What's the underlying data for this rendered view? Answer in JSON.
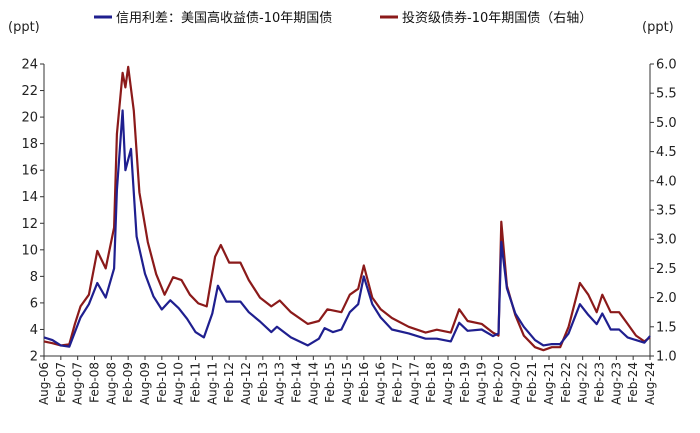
{
  "chart_data": {
    "type": "line",
    "title": "",
    "units": {
      "left": "(ppt)",
      "right": "(ppt)"
    },
    "legend": {
      "placement": "top",
      "entries": [
        "信用利差：美国高收益债-10年期国债",
        "投资级债券-10年期国债（右轴）"
      ]
    },
    "grid": false,
    "x_categories": [
      "Aug-06",
      "Feb-07",
      "Aug-07",
      "Feb-08",
      "Aug-08",
      "Feb-09",
      "Aug-09",
      "Feb-10",
      "Aug-10",
      "Feb-11",
      "Aug-11",
      "Feb-12",
      "Aug-12",
      "Feb-13",
      "Aug-13",
      "Feb-14",
      "Aug-14",
      "Feb-15",
      "Aug-15",
      "Feb-16",
      "Aug-16",
      "Feb-17",
      "Aug-17",
      "Feb-18",
      "Aug-18",
      "Feb-19",
      "Aug-19",
      "Feb-20",
      "Aug-20",
      "Feb-21",
      "Aug-21",
      "Feb-22",
      "Aug-22",
      "Feb-23",
      "Aug-23",
      "Feb-24",
      "Aug-24"
    ],
    "y_left": {
      "ylim": [
        2,
        24
      ],
      "ticks": [
        2,
        4,
        6,
        8,
        10,
        12,
        14,
        16,
        18,
        20,
        22,
        24
      ]
    },
    "y_right": {
      "ylim": [
        1.0,
        6.0
      ],
      "ticks": [
        "1.0",
        "1.5",
        "2.0",
        "2.5",
        "3.0",
        "3.5",
        "4.0",
        "4.5",
        "5.0",
        "5.5",
        "6.0"
      ]
    },
    "series": [
      {
        "name": "信用利差：美国高收益债-10年期国债",
        "axis": "left",
        "color": "#1f1f8f",
        "points": [
          [
            "2006-08",
            3.4
          ],
          [
            "2006-11",
            3.2
          ],
          [
            "2007-02",
            2.8
          ],
          [
            "2007-05",
            2.7
          ],
          [
            "2007-07",
            3.8
          ],
          [
            "2007-09",
            4.9
          ],
          [
            "2007-12",
            5.9
          ],
          [
            "2008-03",
            7.5
          ],
          [
            "2008-06",
            6.4
          ],
          [
            "2008-09",
            8.6
          ],
          [
            "2008-10",
            14.5
          ],
          [
            "2008-12",
            20.5
          ],
          [
            "2009-01",
            16.0
          ],
          [
            "2009-03",
            17.6
          ],
          [
            "2009-05",
            11.0
          ],
          [
            "2009-08",
            8.2
          ],
          [
            "2009-11",
            6.5
          ],
          [
            "2010-02",
            5.5
          ],
          [
            "2010-05",
            6.2
          ],
          [
            "2010-08",
            5.6
          ],
          [
            "2010-11",
            4.8
          ],
          [
            "2011-02",
            3.8
          ],
          [
            "2011-05",
            3.4
          ],
          [
            "2011-08",
            5.2
          ],
          [
            "2011-10",
            7.3
          ],
          [
            "2012-01",
            6.1
          ],
          [
            "2012-06",
            6.1
          ],
          [
            "2012-09",
            5.3
          ],
          [
            "2013-01",
            4.6
          ],
          [
            "2013-05",
            3.8
          ],
          [
            "2013-07",
            4.2
          ],
          [
            "2013-12",
            3.4
          ],
          [
            "2014-06",
            2.8
          ],
          [
            "2014-10",
            3.3
          ],
          [
            "2014-12",
            4.1
          ],
          [
            "2015-03",
            3.8
          ],
          [
            "2015-06",
            4.0
          ],
          [
            "2015-09",
            5.3
          ],
          [
            "2015-12",
            5.9
          ],
          [
            "2016-02",
            8.0
          ],
          [
            "2016-05",
            5.9
          ],
          [
            "2016-08",
            4.9
          ],
          [
            "2016-12",
            4.0
          ],
          [
            "2017-06",
            3.7
          ],
          [
            "2017-12",
            3.3
          ],
          [
            "2018-04",
            3.3
          ],
          [
            "2018-09",
            3.1
          ],
          [
            "2018-12",
            4.5
          ],
          [
            "2019-03",
            3.9
          ],
          [
            "2019-08",
            4.0
          ],
          [
            "2019-12",
            3.5
          ],
          [
            "2020-02",
            3.7
          ],
          [
            "2020-03",
            10.6
          ],
          [
            "2020-05",
            7.1
          ],
          [
            "2020-08",
            5.2
          ],
          [
            "2020-11",
            4.2
          ],
          [
            "2021-03",
            3.2
          ],
          [
            "2021-06",
            2.8
          ],
          [
            "2021-09",
            2.9
          ],
          [
            "2021-12",
            2.9
          ],
          [
            "2022-03",
            3.7
          ],
          [
            "2022-07",
            5.9
          ],
          [
            "2022-10",
            5.1
          ],
          [
            "2023-01",
            4.4
          ],
          [
            "2023-03",
            5.2
          ],
          [
            "2023-06",
            4.0
          ],
          [
            "2023-09",
            4.0
          ],
          [
            "2023-12",
            3.4
          ],
          [
            "2024-03",
            3.2
          ],
          [
            "2024-06",
            3.0
          ],
          [
            "2024-08",
            3.5
          ]
        ]
      },
      {
        "name": "投资级债券-10年期国债（右轴）",
        "axis": "right",
        "color": "#8b1a1a",
        "points": [
          [
            "2006-08",
            1.25
          ],
          [
            "2006-11",
            1.22
          ],
          [
            "2007-02",
            1.18
          ],
          [
            "2007-05",
            1.2
          ],
          [
            "2007-07",
            1.55
          ],
          [
            "2007-09",
            1.85
          ],
          [
            "2007-12",
            2.05
          ],
          [
            "2008-03",
            2.8
          ],
          [
            "2008-06",
            2.5
          ],
          [
            "2008-09",
            3.2
          ],
          [
            "2008-10",
            4.8
          ],
          [
            "2008-12",
            5.85
          ],
          [
            "2009-01",
            5.6
          ],
          [
            "2009-02",
            5.95
          ],
          [
            "2009-04",
            5.2
          ],
          [
            "2009-06",
            3.8
          ],
          [
            "2009-09",
            2.95
          ],
          [
            "2009-12",
            2.4
          ],
          [
            "2010-03",
            2.05
          ],
          [
            "2010-06",
            2.35
          ],
          [
            "2010-09",
            2.3
          ],
          [
            "2010-12",
            2.05
          ],
          [
            "2011-03",
            1.9
          ],
          [
            "2011-06",
            1.85
          ],
          [
            "2011-09",
            2.7
          ],
          [
            "2011-11",
            2.9
          ],
          [
            "2012-02",
            2.6
          ],
          [
            "2012-06",
            2.6
          ],
          [
            "2012-09",
            2.3
          ],
          [
            "2013-01",
            2.0
          ],
          [
            "2013-05",
            1.85
          ],
          [
            "2013-08",
            1.95
          ],
          [
            "2013-12",
            1.75
          ],
          [
            "2014-06",
            1.55
          ],
          [
            "2014-10",
            1.6
          ],
          [
            "2015-01",
            1.8
          ],
          [
            "2015-06",
            1.75
          ],
          [
            "2015-09",
            2.05
          ],
          [
            "2015-12",
            2.15
          ],
          [
            "2016-02",
            2.55
          ],
          [
            "2016-05",
            2.0
          ],
          [
            "2016-08",
            1.8
          ],
          [
            "2016-12",
            1.65
          ],
          [
            "2017-06",
            1.5
          ],
          [
            "2017-12",
            1.4
          ],
          [
            "2018-04",
            1.45
          ],
          [
            "2018-09",
            1.4
          ],
          [
            "2018-12",
            1.8
          ],
          [
            "2019-03",
            1.6
          ],
          [
            "2019-08",
            1.55
          ],
          [
            "2019-12",
            1.4
          ],
          [
            "2020-02",
            1.35
          ],
          [
            "2020-03",
            3.3
          ],
          [
            "2020-05",
            2.2
          ],
          [
            "2020-08",
            1.7
          ],
          [
            "2020-11",
            1.35
          ],
          [
            "2021-03",
            1.15
          ],
          [
            "2021-06",
            1.1
          ],
          [
            "2021-09",
            1.15
          ],
          [
            "2021-12",
            1.15
          ],
          [
            "2022-03",
            1.5
          ],
          [
            "2022-07",
            2.25
          ],
          [
            "2022-10",
            2.05
          ],
          [
            "2023-01",
            1.75
          ],
          [
            "2023-03",
            2.05
          ],
          [
            "2023-06",
            1.75
          ],
          [
            "2023-09",
            1.75
          ],
          [
            "2023-12",
            1.55
          ],
          [
            "2024-03",
            1.35
          ],
          [
            "2024-06",
            1.25
          ],
          [
            "2024-08",
            1.32
          ]
        ]
      }
    ]
  }
}
